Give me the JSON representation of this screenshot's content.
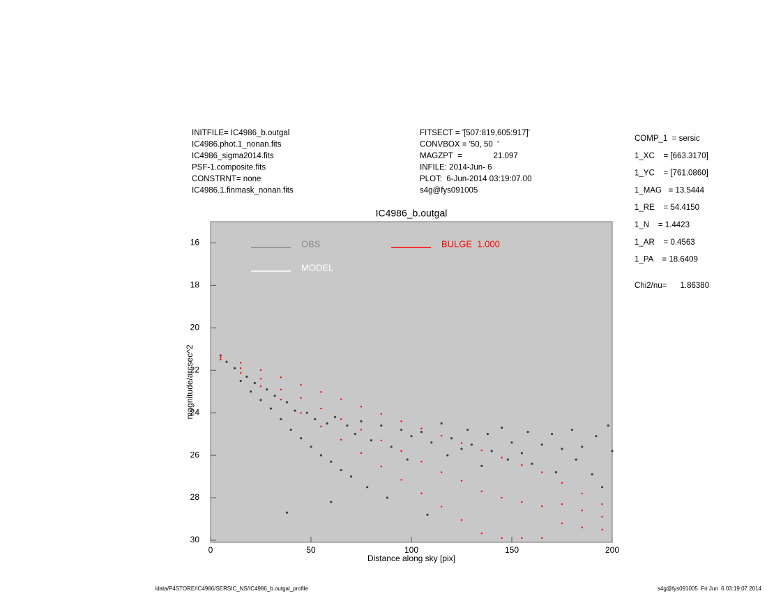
{
  "header": {
    "left": [
      "INITFILE= IC4986_b.outgal",
      "IC4986.phot.1_nonan.fits",
      "IC4986_sigma2014.fits",
      "PSF-1.composite.fits",
      "CONSTRNT= none",
      "IC4986.1.finmask_nonan.fits"
    ],
    "middle": [
      "FITSECT = '[507:819,605:917]'",
      "CONVBOX = '50, 50  '",
      "MAGZPT  =              21.097",
      "INFILE: 2014-Jun- 6",
      "PLOT:  6-Jun-2014 03:19:07.00",
      "s4g@fys091005"
    ],
    "right": [
      "COMP_1  = sersic",
      "1_XC    = [663.3170]",
      "1_YC    = [761.0860]",
      "1_MAG   = 13.5444",
      "1_RE    = 54.4150",
      "1_N    = 1.4423",
      "1_AR    = 0.4563",
      "1_PA    = 18.6409"
    ],
    "chi2": "Chi2/nu=      1.86380"
  },
  "footer": {
    "left": "/data/P4STORE/IC4986/SERSIC_NS/IC4986_b.outgal_profile",
    "right": "s4g@fys091005  Fri Jun  6 03:19:07 2014"
  },
  "chart_data": {
    "type": "scatter",
    "title": "IC4986_b.outgal",
    "x_label": "Distance along sky [pix]",
    "y_label": "magnitude/arcsec^2",
    "xlim": [
      0,
      200
    ],
    "ylim": [
      30.1,
      15
    ],
    "xticks": [
      0,
      50,
      100,
      150,
      200
    ],
    "yticks": [
      16,
      18,
      20,
      22,
      24,
      26,
      28,
      30
    ],
    "background": "#c8c8c8",
    "series": [
      {
        "name": "OBS",
        "color": "#404040",
        "legend_color": "#8c8c8c",
        "x": [
          5,
          8,
          12,
          15,
          18,
          20,
          22,
          25,
          28,
          30,
          32,
          35,
          38,
          40,
          42,
          45,
          48,
          50,
          52,
          55,
          58,
          60,
          62,
          65,
          68,
          70,
          72,
          75,
          78,
          80,
          85,
          88,
          90,
          95,
          98,
          100,
          105,
          108,
          110,
          115,
          118,
          120,
          125,
          128,
          130,
          135,
          138,
          140,
          145,
          148,
          150,
          155,
          158,
          160,
          165,
          170,
          172,
          175,
          180,
          182,
          185,
          190,
          192,
          195,
          198,
          200,
          38,
          60
        ],
        "values": [
          21.3,
          21.6,
          21.9,
          22.5,
          22.3,
          23.0,
          22.6,
          23.4,
          22.9,
          23.8,
          23.2,
          24.3,
          23.5,
          24.8,
          23.9,
          25.2,
          24.0,
          25.6,
          24.3,
          26.0,
          24.5,
          26.3,
          24.2,
          26.7,
          24.6,
          27.0,
          25.0,
          24.4,
          27.5,
          25.3,
          24.6,
          28.0,
          25.6,
          24.8,
          26.2,
          25.1,
          24.9,
          28.8,
          25.4,
          24.5,
          26.0,
          25.2,
          25.7,
          24.8,
          25.5,
          26.5,
          25.0,
          25.8,
          24.7,
          26.2,
          25.4,
          25.9,
          24.9,
          26.4,
          25.5,
          25.0,
          26.8,
          25.7,
          24.8,
          26.2,
          25.6,
          26.9,
          25.1,
          27.5,
          24.6,
          25.8,
          28.7,
          28.2
        ]
      },
      {
        "name": "MODEL",
        "color": "#ffffff",
        "legend_color": "#ffffff",
        "x": [],
        "values": []
      },
      {
        "name": "BULGE  1.000",
        "color": "#ff0000",
        "legend_color": "#ff0000",
        "x": [
          5,
          5,
          5,
          15,
          15,
          15,
          25,
          25,
          25,
          35,
          35,
          35,
          45,
          45,
          45,
          55,
          55,
          55,
          65,
          65,
          65,
          75,
          75,
          75,
          85,
          85,
          85,
          95,
          95,
          95,
          105,
          105,
          105,
          115,
          115,
          115,
          125,
          125,
          125,
          135,
          135,
          135,
          145,
          145,
          145,
          155,
          155,
          155,
          165,
          165,
          165,
          175,
          175,
          175,
          185,
          185,
          185,
          195,
          195,
          195
        ],
        "values": [
          21.3,
          21.4,
          21.49,
          21.65,
          21.9,
          22.12,
          21.99,
          22.4,
          22.75,
          22.33,
          22.9,
          23.38,
          22.68,
          23.3,
          24.01,
          23.02,
          23.8,
          24.64,
          23.36,
          24.3,
          25.27,
          23.71,
          24.8,
          25.9,
          24.05,
          25.3,
          26.53,
          24.4,
          25.8,
          27.16,
          24.74,
          26.3,
          27.79,
          25.08,
          26.8,
          28.42,
          25.43,
          27.2,
          29.05,
          25.77,
          27.7,
          29.68,
          26.11,
          28.0,
          29.9,
          26.46,
          28.2,
          29.9,
          26.8,
          28.4,
          29.9,
          27.3,
          28.3,
          29.2,
          27.8,
          28.6,
          29.4,
          28.3,
          28.9,
          29.5
        ]
      }
    ]
  }
}
